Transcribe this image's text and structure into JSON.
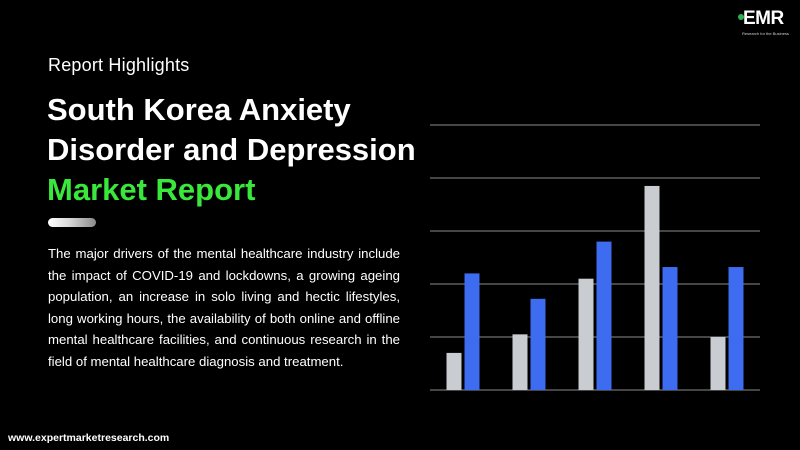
{
  "header": {
    "eyebrow": "Report Highlights",
    "title_line1": "South Korea Anxiety",
    "title_line2": "Disorder and Depression",
    "title_line3": "Market Report"
  },
  "description": "The major drivers of the mental healthcare industry include the impact of COVID-19 and lockdowns, a growing ageing population, an increase in solo living and hectic lifestyles, long working hours, the availability of both online and offline mental healthcare facilities, and continuous research in the field of mental healthcare diagnosis and treatment.",
  "footer": {
    "url": "www.expertmarketresearch.com"
  },
  "logo": {
    "mark": "EMR",
    "tagline": "Research for the Business"
  },
  "colors": {
    "background": "#000000",
    "accent_green": "#39e83a",
    "bar_grey": "#c9cdd2",
    "bar_blue": "#3d6cf0",
    "grid": "#8c8c8c"
  },
  "chart_data": {
    "type": "bar",
    "categories": [
      "",
      "",
      "",
      "",
      ""
    ],
    "series": [
      {
        "values": [
          0.7,
          1.05,
          2.1,
          3.85,
          1.0
        ]
      },
      {
        "values": [
          2.2,
          1.72,
          2.8,
          2.32,
          2.32
        ]
      }
    ],
    "ylim": [
      0,
      5
    ],
    "grid": true,
    "axis_labels": false
  }
}
